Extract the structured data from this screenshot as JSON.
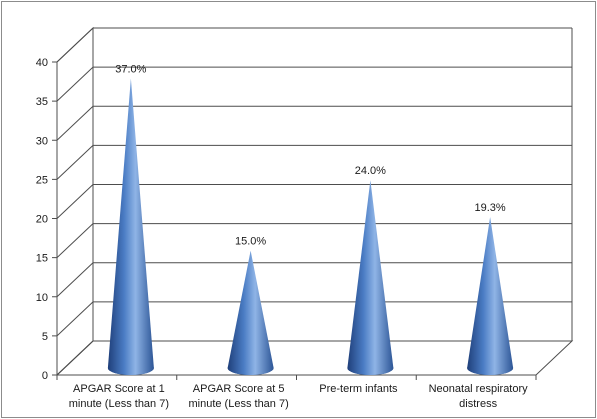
{
  "chart_data": {
    "type": "bar",
    "style": "3d-cone",
    "title": "",
    "xlabel": "",
    "ylabel": "",
    "categories": [
      [
        "APGAR Score at 1",
        "minute (Less than 7)"
      ],
      [
        "APGAR Score at 5",
        "minute (Less than 7)"
      ],
      [
        "Pre-term infants"
      ],
      [
        "Neonatal respiratory",
        "distress"
      ]
    ],
    "values": [
      37.0,
      15.0,
      24.0,
      19.3
    ],
    "data_labels": [
      "37.0%",
      "15.0%",
      "24.0%",
      "19.3%"
    ],
    "ylim": [
      0,
      40
    ],
    "yticks": [
      0,
      5,
      10,
      15,
      20,
      25,
      30,
      35,
      40
    ],
    "grid": true,
    "legend": "none",
    "colors": {
      "cone_dark": "#1f3f7a",
      "cone_mid": "#4a7cc4",
      "cone_light": "#8fb4e6",
      "grid": "#4d4d4d",
      "wall": "#ffffff"
    }
  }
}
